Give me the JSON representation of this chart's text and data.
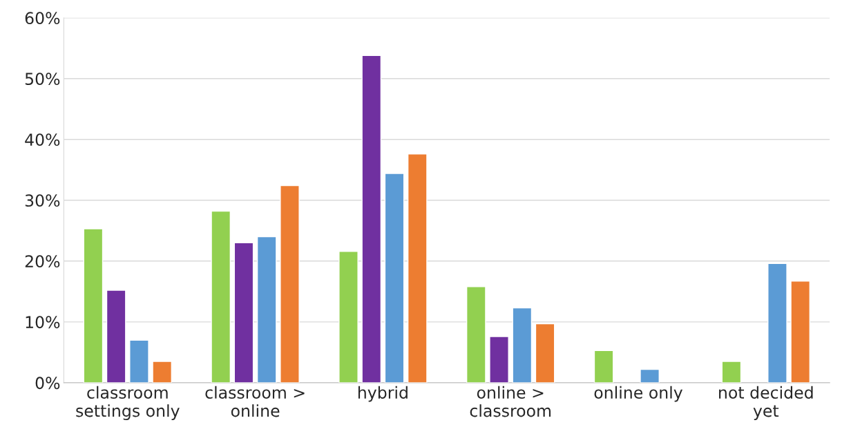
{
  "chart_data": {
    "type": "bar",
    "categories": [
      "classroom\nsettings only",
      "classroom >\nonline",
      "hybrid",
      "online >\nclassroom",
      "online only",
      "not decided\nyet"
    ],
    "series": [
      {
        "color": "#92d050",
        "values": [
          25.3,
          28.2,
          21.6,
          15.8,
          5.3,
          3.5
        ]
      },
      {
        "color": "#7030a0",
        "values": [
          15.2,
          23.0,
          53.8,
          7.6,
          null,
          null
        ]
      },
      {
        "color": "#5b9bd5",
        "values": [
          7.0,
          24.0,
          34.4,
          12.3,
          2.2,
          19.6
        ]
      },
      {
        "color": "#ed7d31",
        "values": [
          3.5,
          32.4,
          37.6,
          9.7,
          null,
          16.7
        ]
      }
    ],
    "ylim": [
      0,
      60
    ],
    "yticks": [
      {
        "value": 0,
        "label": "0%"
      },
      {
        "value": 10,
        "label": "10%"
      },
      {
        "value": 20,
        "label": "20%"
      },
      {
        "value": 30,
        "label": "30%"
      },
      {
        "value": 40,
        "label": "40%"
      },
      {
        "value": 50,
        "label": "50%"
      },
      {
        "value": 60,
        "label": "60%"
      }
    ],
    "grid": "y",
    "legend": false
  }
}
